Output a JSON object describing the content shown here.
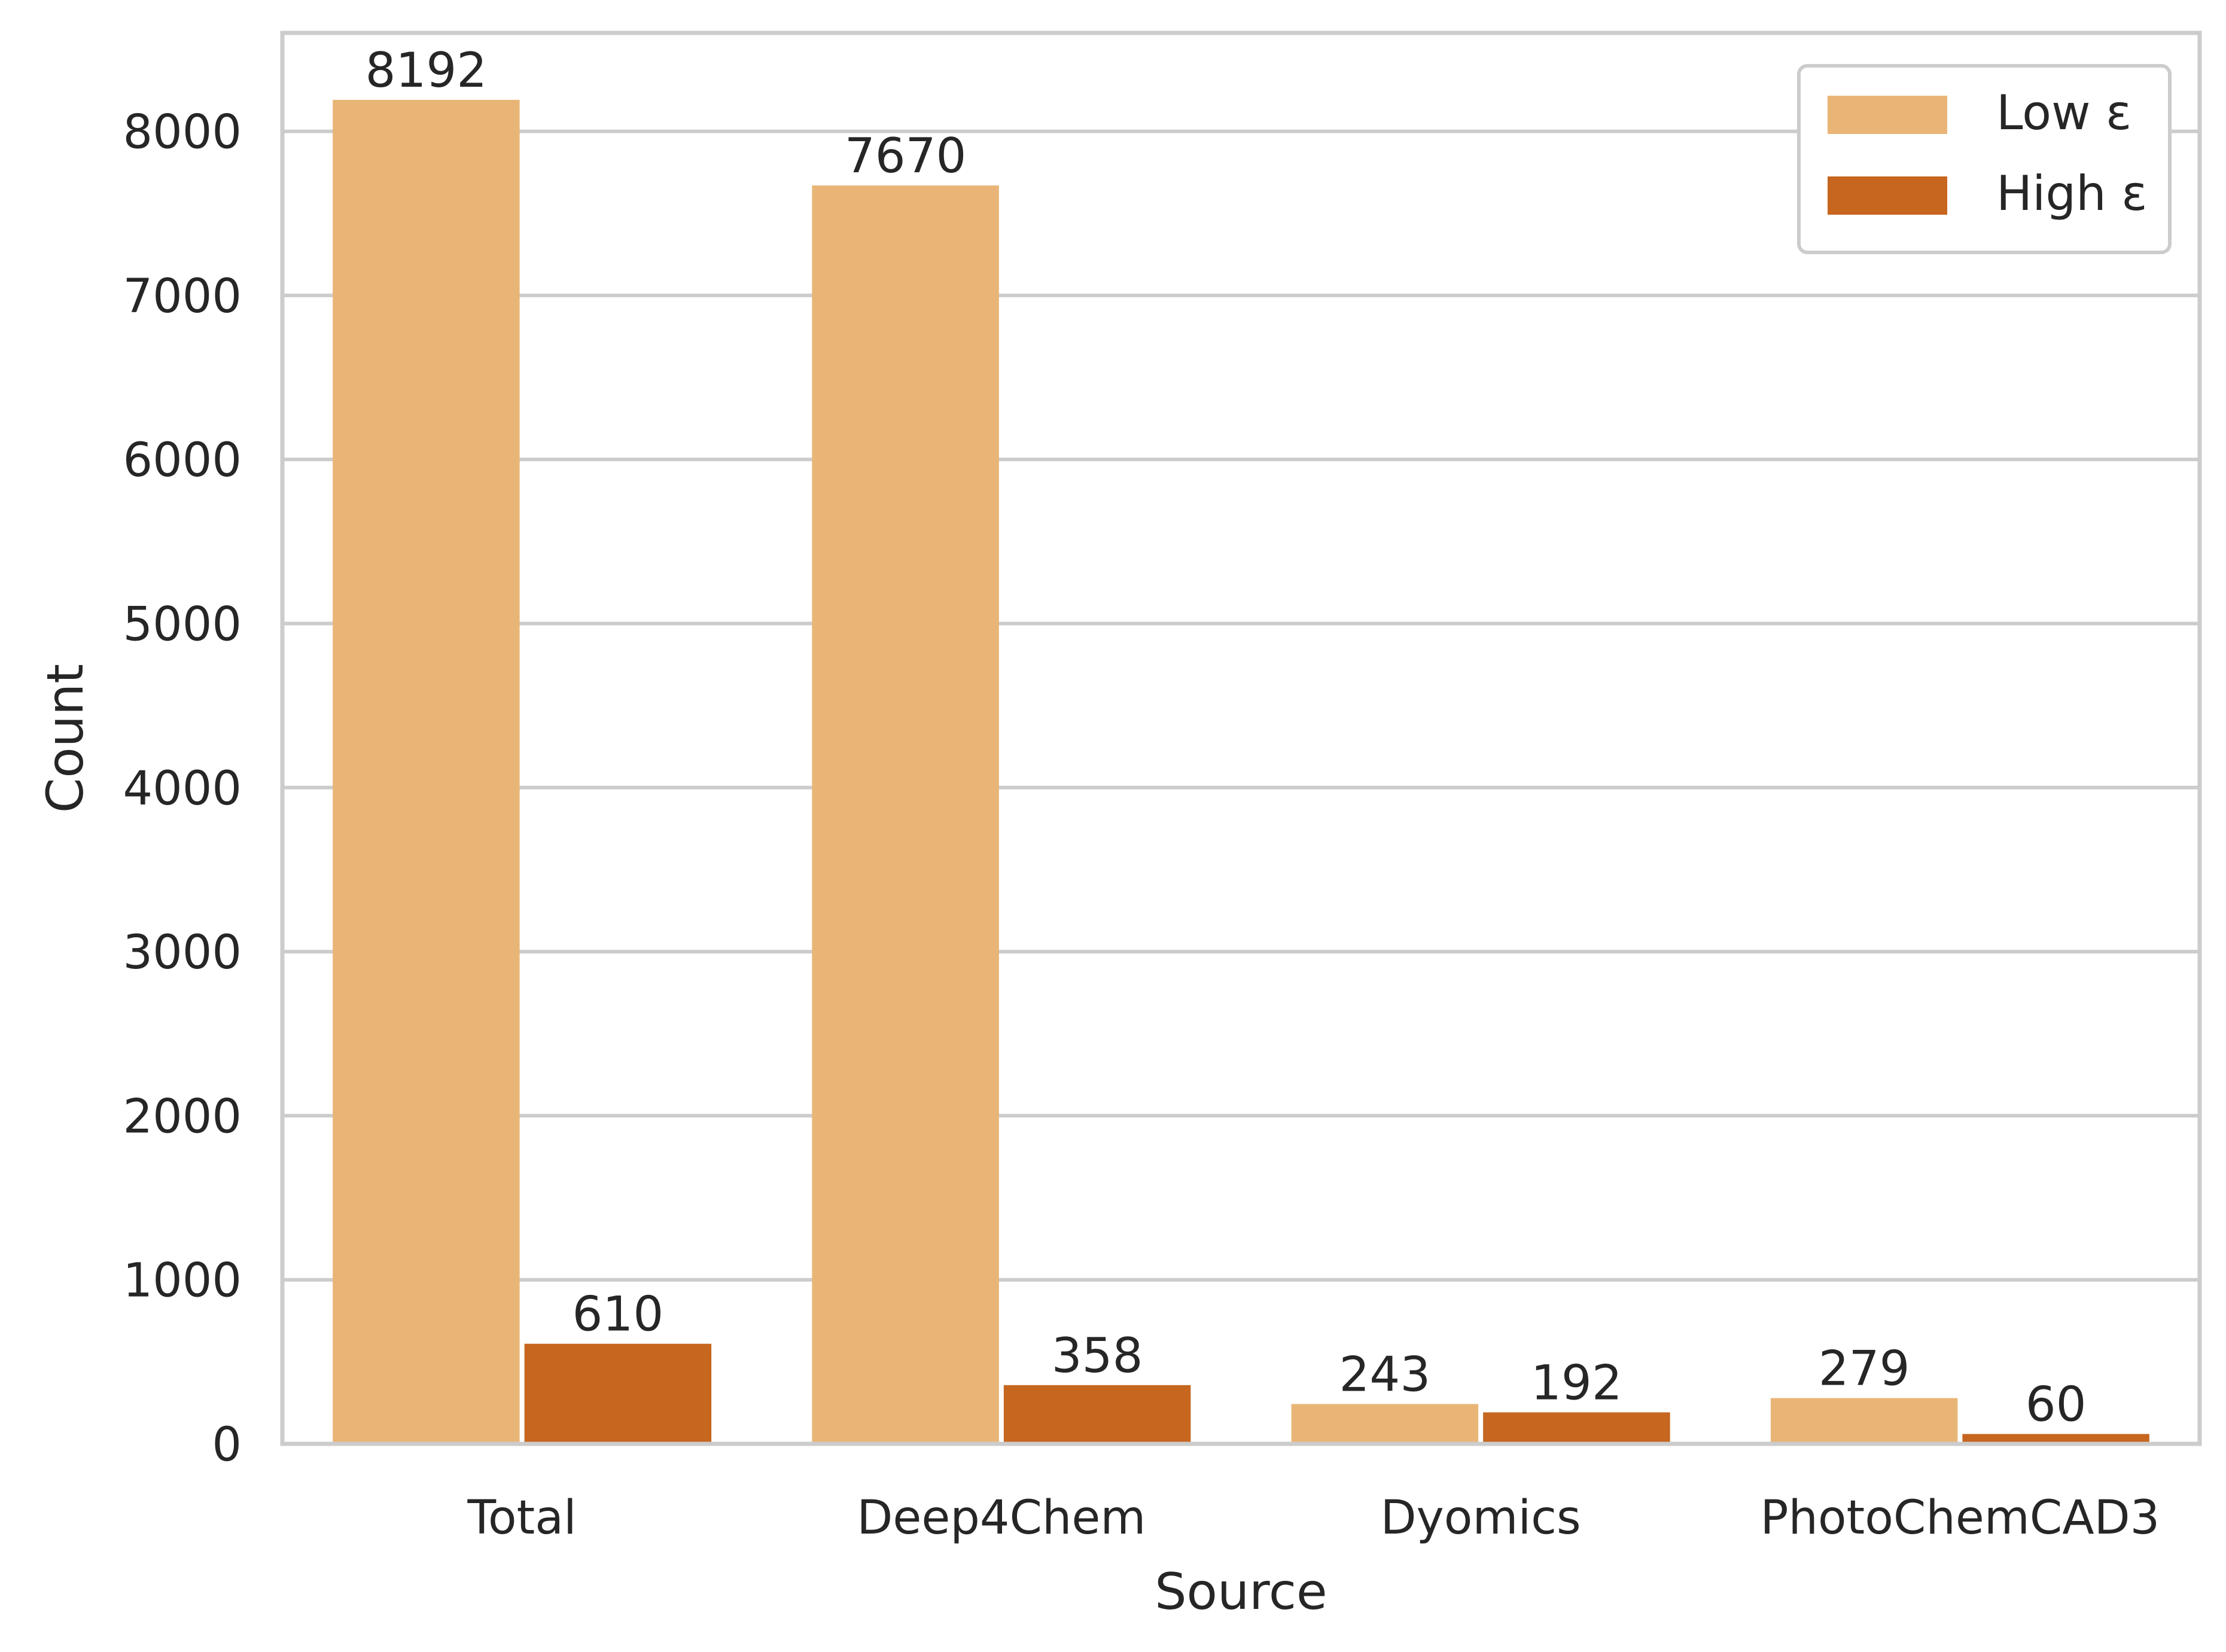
{
  "chart_data": {
    "type": "bar",
    "categories": [
      "Total",
      "Deep4Chem",
      "Dyomics",
      "PhotoChemCAD3"
    ],
    "series": [
      {
        "name": "Low ε",
        "values": [
          8192,
          7670,
          243,
          279
        ],
        "color": "#E9B577"
      },
      {
        "name": "High ε",
        "values": [
          610,
          358,
          192,
          60
        ],
        "color": "#C6661F"
      }
    ],
    "xlabel": "Source",
    "ylabel": "Count",
    "ylim": [
      0,
      8600
    ],
    "yticks": [
      0,
      1000,
      2000,
      3000,
      4000,
      5000,
      6000,
      7000,
      8000
    ],
    "grid": true,
    "legend_position": "top-right",
    "colors": {
      "grid": "#CCCCCC",
      "frame": "#CCCCCC",
      "text": "#262626",
      "background": "#FFFFFF"
    }
  }
}
